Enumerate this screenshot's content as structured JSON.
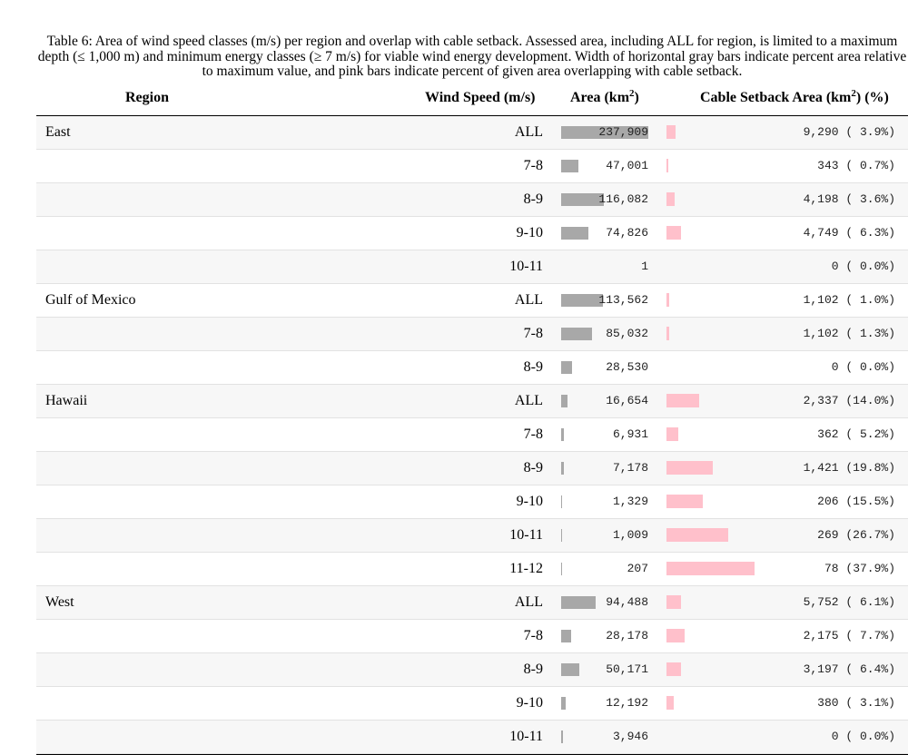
{
  "caption": "Table 6: Area of wind speed classes (m/s) per region and overlap with cable setback. Assessed area, including ALL for region, is limited to a maximum depth (≤ 1,000 m) and minimum energy classes (≥ 7 m/s) for viable wind energy development. Width of horizontal gray bars indicate percent area relative to maximum value, and pink bars indicate percent of given area overlapping with cable setback.",
  "columns": {
    "region": "Region",
    "wind_speed": "Wind Speed (m/s)",
    "area": "Area (km",
    "area_sup": "2",
    "area_close": ")",
    "cable": "Cable Setback Area (km",
    "cable_sup": "2",
    "cable_close": ") (%)"
  },
  "colors": {
    "gray_bar": "#a8a8a8",
    "pink_bar": "#ffc0cb"
  },
  "max_area": 237909,
  "rows": [
    {
      "region": "East",
      "ws": "ALL",
      "area": 237909,
      "area_text": "237,909",
      "cable_text": "9,290 ( 3.9%)",
      "pct": 3.9
    },
    {
      "region": "",
      "ws": "7-8",
      "area": 47001,
      "area_text": "47,001",
      "cable_text": "343 ( 0.7%)",
      "pct": 0.7
    },
    {
      "region": "",
      "ws": "8-9",
      "area": 116082,
      "area_text": "116,082",
      "cable_text": "4,198 ( 3.6%)",
      "pct": 3.6
    },
    {
      "region": "",
      "ws": "9-10",
      "area": 74826,
      "area_text": "74,826",
      "cable_text": "4,749 ( 6.3%)",
      "pct": 6.3
    },
    {
      "region": "",
      "ws": "10-11",
      "area": 1,
      "area_text": "1",
      "cable_text": "0 ( 0.0%)",
      "pct": 0.0
    },
    {
      "region": "Gulf of Mexico",
      "ws": "ALL",
      "area": 113562,
      "area_text": "113,562",
      "cable_text": "1,102 ( 1.0%)",
      "pct": 1.0
    },
    {
      "region": "",
      "ws": "7-8",
      "area": 85032,
      "area_text": "85,032",
      "cable_text": "1,102 ( 1.3%)",
      "pct": 1.3
    },
    {
      "region": "",
      "ws": "8-9",
      "area": 28530,
      "area_text": "28,530",
      "cable_text": "0 ( 0.0%)",
      "pct": 0.0
    },
    {
      "region": "Hawaii",
      "ws": "ALL",
      "area": 16654,
      "area_text": "16,654",
      "cable_text": "2,337 (14.0%)",
      "pct": 14.0
    },
    {
      "region": "",
      "ws": "7-8",
      "area": 6931,
      "area_text": "6,931",
      "cable_text": "362 ( 5.2%)",
      "pct": 5.2
    },
    {
      "region": "",
      "ws": "8-9",
      "area": 7178,
      "area_text": "7,178",
      "cable_text": "1,421 (19.8%)",
      "pct": 19.8
    },
    {
      "region": "",
      "ws": "9-10",
      "area": 1329,
      "area_text": "1,329",
      "cable_text": "206 (15.5%)",
      "pct": 15.5
    },
    {
      "region": "",
      "ws": "10-11",
      "area": 1009,
      "area_text": "1,009",
      "cable_text": "269 (26.7%)",
      "pct": 26.7
    },
    {
      "region": "",
      "ws": "11-12",
      "area": 207,
      "area_text": "207",
      "cable_text": "78 (37.9%)",
      "pct": 37.9
    },
    {
      "region": "West",
      "ws": "ALL",
      "area": 94488,
      "area_text": "94,488",
      "cable_text": "5,752 ( 6.1%)",
      "pct": 6.1
    },
    {
      "region": "",
      "ws": "7-8",
      "area": 28178,
      "area_text": "28,178",
      "cable_text": "2,175 ( 7.7%)",
      "pct": 7.7
    },
    {
      "region": "",
      "ws": "8-9",
      "area": 50171,
      "area_text": "50,171",
      "cable_text": "3,197 ( 6.4%)",
      "pct": 6.4
    },
    {
      "region": "",
      "ws": "9-10",
      "area": 12192,
      "area_text": "12,192",
      "cable_text": "380 ( 3.1%)",
      "pct": 3.1
    },
    {
      "region": "",
      "ws": "10-11",
      "area": 3946,
      "area_text": "3,946",
      "cable_text": "0 ( 0.0%)",
      "pct": 0.0
    }
  ]
}
